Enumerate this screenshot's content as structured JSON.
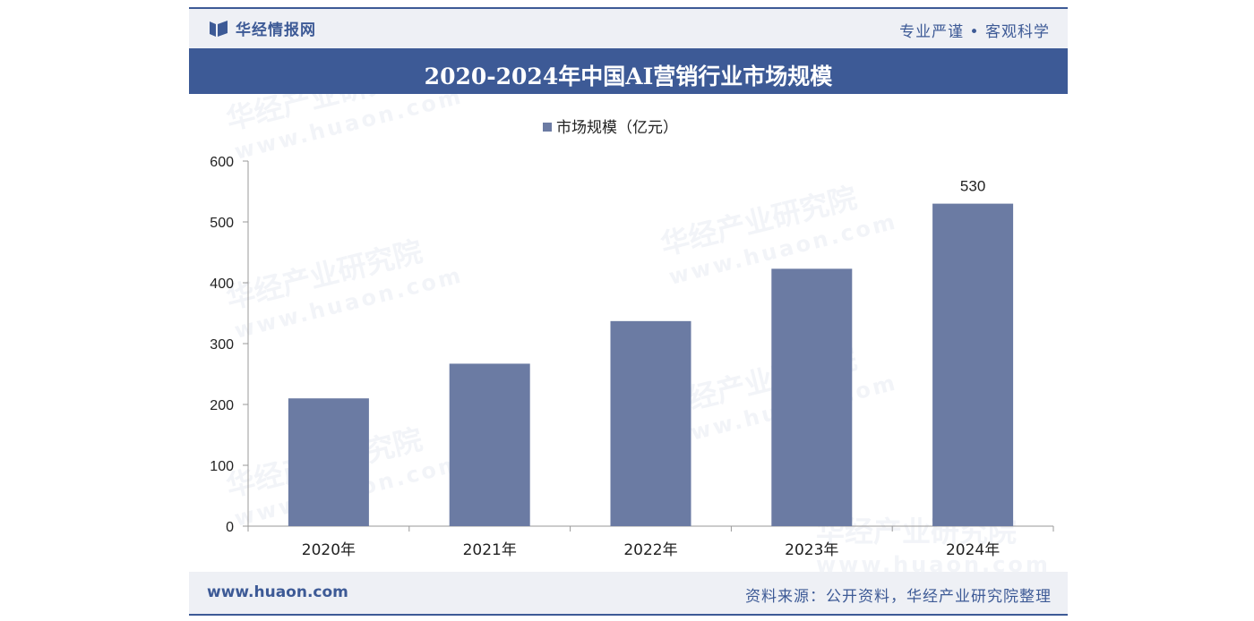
{
  "header": {
    "brand_name": "华经情报网",
    "slogan": "专业严谨 • 客观科学"
  },
  "footer": {
    "site": "www.huaon.com",
    "source": "资料来源：公开资料，华经产业研究院整理"
  },
  "watermark": {
    "text": "华经产业研究院",
    "url": "www.huaon.com"
  },
  "colors": {
    "brand": "#3d5a96",
    "bar": "#6b7ba3",
    "band": "#eef0f5"
  },
  "chart_data": {
    "type": "bar",
    "title": "2020-2024年中国AI营销行业市场规模",
    "categories": [
      "2020年",
      "2021年",
      "2022年",
      "2023年",
      "2024年"
    ],
    "series": [
      {
        "name": "市场规模（亿元）",
        "values": [
          210,
          267,
          337,
          423,
          530
        ]
      }
    ],
    "data_labels": [
      "",
      "",
      "",
      "",
      "530"
    ],
    "ylim": [
      0,
      600
    ],
    "yticks": [
      "0",
      "100",
      "200",
      "300",
      "400",
      "500",
      "600"
    ],
    "legend": "top-center",
    "grid": false
  }
}
